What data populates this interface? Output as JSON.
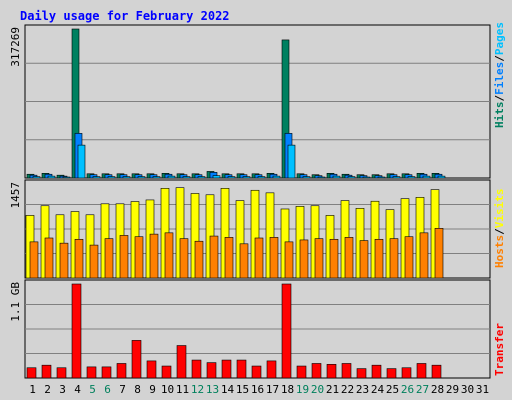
{
  "chart_data": {
    "title": "Daily usage for February 2022",
    "type": "bar",
    "days": [
      "1",
      "2",
      "3",
      "4",
      "5",
      "6",
      "7",
      "8",
      "9",
      "10",
      "11",
      "12",
      "13",
      "14",
      "15",
      "16",
      "17",
      "18",
      "19",
      "20",
      "21",
      "22",
      "23",
      "24",
      "25",
      "26",
      "27",
      "28",
      "29",
      "30",
      "31"
    ],
    "weekend_days": [
      "5",
      "6",
      "12",
      "13",
      "19",
      "20",
      "26",
      "27"
    ],
    "panels": [
      {
        "name": "hits-files-pages",
        "max_label": "317269",
        "ymax": 317269,
        "grid": true,
        "series": [
          {
            "name": "Hits",
            "color": "#008060",
            "values": [
              8000,
              10000,
              6000,
              317269,
              9000,
              9000,
              9000,
              9000,
              9000,
              10000,
              9000,
              9000,
              14000,
              9000,
              9000,
              9000,
              10000,
              294000,
              9000,
              7000,
              10000,
              8000,
              7000,
              7000,
              9000,
              9000,
              10000,
              10000,
              0,
              0,
              0
            ]
          },
          {
            "name": "Files",
            "color": "#0080ff",
            "values": [
              6000,
              8000,
              4000,
              95000,
              7000,
              7000,
              7000,
              7000,
              7000,
              8000,
              7000,
              7000,
              12000,
              7000,
              7000,
              7000,
              8000,
              95000,
              7000,
              5000,
              8000,
              6000,
              5000,
              5000,
              7000,
              7000,
              8000,
              8000,
              0,
              0,
              0
            ]
          },
          {
            "name": "Pages",
            "color": "#00c0ff",
            "values": [
              3000,
              4000,
              2000,
              70000,
              3000,
              3000,
              3000,
              3000,
              3000,
              4000,
              3000,
              3000,
              5000,
              3000,
              3000,
              3000,
              4000,
              70000,
              3000,
              2000,
              4000,
              3000,
              2000,
              2000,
              3000,
              3000,
              4000,
              4000,
              0,
              0,
              0
            ]
          }
        ],
        "legend": [
          "Hits",
          "/",
          "Files",
          "/",
          "Pages"
        ],
        "legend_colors": [
          "#008060",
          "#000000",
          "#0080ff",
          "#000000",
          "#00c0ff"
        ]
      },
      {
        "name": "hosts-visits",
        "max_label": "1457",
        "ymax": 1457,
        "grid": true,
        "series": [
          {
            "name": "Visits",
            "color": "#ffff00",
            "values": [
              970,
              1120,
              980,
              1030,
              980,
              1150,
              1150,
              1185,
              1210,
              1390,
              1400,
              1310,
              1290,
              1390,
              1200,
              1360,
              1320,
              1070,
              1110,
              1120,
              970,
              1200,
              1080,
              1190,
              1060,
              1230,
              1250,
              1370,
              0,
              0,
              0
            ]
          },
          {
            "name": "Hosts",
            "color": "#ff8000",
            "values": [
              560,
              620,
              540,
              600,
              510,
              610,
              660,
              640,
              680,
              700,
              610,
              570,
              650,
              630,
              530,
              620,
              630,
              560,
              590,
              610,
              600,
              630,
              580,
              600,
              610,
              640,
              700,
              770,
              0,
              0,
              0
            ]
          }
        ],
        "legend": [
          "Hosts",
          "/",
          "Visits"
        ],
        "legend_colors": [
          "#ff8000",
          "#000000",
          "#ffff00"
        ]
      },
      {
        "name": "transfer",
        "max_label": "1.1 GB",
        "ymax": 1.1,
        "grid": true,
        "series": [
          {
            "name": "Transfer",
            "color": "#ff0000",
            "values": [
              0.12,
              0.15,
              0.12,
              1.1,
              0.13,
              0.13,
              0.17,
              0.44,
              0.2,
              0.14,
              0.38,
              0.21,
              0.18,
              0.21,
              0.21,
              0.14,
              0.2,
              1.1,
              0.14,
              0.17,
              0.16,
              0.17,
              0.11,
              0.15,
              0.11,
              0.12,
              0.17,
              0.15,
              0,
              0,
              0
            ]
          }
        ],
        "legend": [
          "Transfer"
        ],
        "legend_colors": [
          "#ff0000"
        ]
      }
    ]
  }
}
